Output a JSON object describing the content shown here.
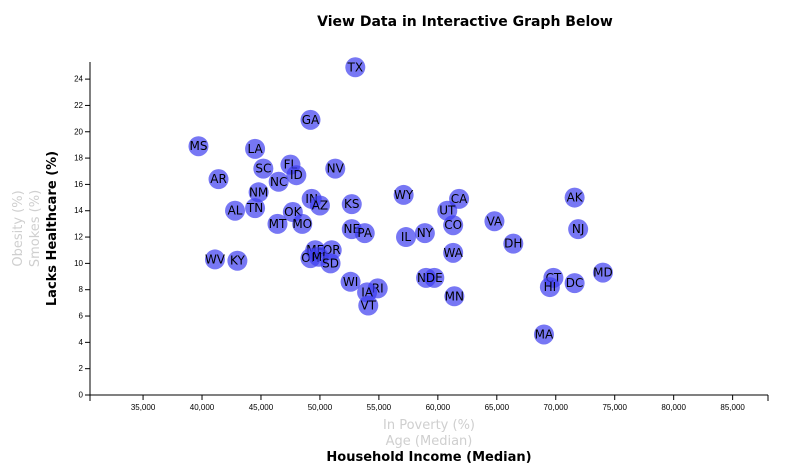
{
  "page": {
    "title": "View Data in Interactive Graph Below"
  },
  "axes": {
    "x_labels": [
      {
        "text": "In Poverty (%)",
        "active": false
      },
      {
        "text": "Age (Median)",
        "active": false
      },
      {
        "text": "Household Income (Median)",
        "active": true
      }
    ],
    "y_labels": [
      {
        "text": "Obesity (%)",
        "active": false
      },
      {
        "text": "Smokes (%)",
        "active": false
      },
      {
        "text": "Lacks Healthcare (%)",
        "active": true
      }
    ]
  },
  "colors": {
    "marker": "#3d3df0",
    "active_label": "#000000",
    "inactive_label": "#cfcfcf"
  },
  "chart_data": {
    "type": "scatter",
    "xlabel": "Household Income (Median)",
    "ylabel": "Lacks Healthcare (%)",
    "xlim": [
      30500,
      88000
    ],
    "ylim": [
      0,
      25.3
    ],
    "x_ticks": [
      35000,
      40000,
      45000,
      50000,
      55000,
      60000,
      65000,
      70000,
      75000,
      80000,
      85000
    ],
    "x_tick_labels": [
      "35,000",
      "40,000",
      "45,000",
      "50,000",
      "55,000",
      "60,000",
      "65,000",
      "70,000",
      "75,000",
      "80,000",
      "85,000"
    ],
    "y_ticks": [
      0,
      2,
      4,
      6,
      8,
      10,
      12,
      14,
      16,
      18,
      20,
      22,
      24
    ],
    "grid": false,
    "points": [
      {
        "label": "TX",
        "x": 53000,
        "y": 24.9
      },
      {
        "label": "GA",
        "x": 49200,
        "y": 20.9
      },
      {
        "label": "MS",
        "x": 39700,
        "y": 18.9
      },
      {
        "label": "LA",
        "x": 44500,
        "y": 18.7
      },
      {
        "label": "FL",
        "x": 47500,
        "y": 17.5
      },
      {
        "label": "SC",
        "x": 45200,
        "y": 17.2
      },
      {
        "label": "NV",
        "x": 51300,
        "y": 17.2
      },
      {
        "label": "ID",
        "x": 48000,
        "y": 16.7
      },
      {
        "label": "NC",
        "x": 46500,
        "y": 16.2
      },
      {
        "label": "AR",
        "x": 41400,
        "y": 16.4
      },
      {
        "label": "NM",
        "x": 44800,
        "y": 15.4
      },
      {
        "label": "WY",
        "x": 57100,
        "y": 15.2
      },
      {
        "label": "CA",
        "x": 61800,
        "y": 14.9
      },
      {
        "label": "AK",
        "x": 71600,
        "y": 15.0
      },
      {
        "label": "IN",
        "x": 49300,
        "y": 14.9
      },
      {
        "label": "AZ",
        "x": 50000,
        "y": 14.4
      },
      {
        "label": "KS",
        "x": 52700,
        "y": 14.5
      },
      {
        "label": "UT",
        "x": 60800,
        "y": 14.0
      },
      {
        "label": "AL",
        "x": 42800,
        "y": 14.0
      },
      {
        "label": "TN",
        "x": 44500,
        "y": 14.2
      },
      {
        "label": "OK",
        "x": 47700,
        "y": 13.9
      },
      {
        "label": "VA",
        "x": 64800,
        "y": 13.2
      },
      {
        "label": "MT",
        "x": 46400,
        "y": 13.0
      },
      {
        "label": "MO",
        "x": 48500,
        "y": 13.0
      },
      {
        "label": "CO",
        "x": 61300,
        "y": 12.9
      },
      {
        "label": "NJ",
        "x": 71900,
        "y": 12.6
      },
      {
        "label": "NE",
        "x": 52700,
        "y": 12.6
      },
      {
        "label": "NY",
        "x": 58900,
        "y": 12.3
      },
      {
        "label": "PA",
        "x": 53800,
        "y": 12.3
      },
      {
        "label": "IL",
        "x": 57300,
        "y": 12.0
      },
      {
        "label": "DH",
        "x": 66400,
        "y": 11.5
      },
      {
        "label": "WA",
        "x": 61300,
        "y": 10.8
      },
      {
        "label": "ME",
        "x": 49600,
        "y": 11.0
      },
      {
        "label": "OR",
        "x": 51000,
        "y": 11.0
      },
      {
        "label": "OH",
        "x": 49200,
        "y": 10.4
      },
      {
        "label": "MI",
        "x": 49900,
        "y": 10.5
      },
      {
        "label": "WV",
        "x": 41100,
        "y": 10.3
      },
      {
        "label": "KY",
        "x": 43000,
        "y": 10.2
      },
      {
        "label": "SD",
        "x": 50900,
        "y": 10.0
      },
      {
        "label": "MD",
        "x": 74000,
        "y": 9.3
      },
      {
        "label": "ND",
        "x": 59000,
        "y": 8.9
      },
      {
        "label": "DE",
        "x": 59700,
        "y": 8.9
      },
      {
        "label": "CT",
        "x": 69800,
        "y": 8.9
      },
      {
        "label": "WI",
        "x": 52600,
        "y": 8.6
      },
      {
        "label": "DC",
        "x": 71600,
        "y": 8.5
      },
      {
        "label": "HI",
        "x": 69500,
        "y": 8.2
      },
      {
        "label": "RI",
        "x": 54900,
        "y": 8.1
      },
      {
        "label": "IA",
        "x": 54000,
        "y": 7.8
      },
      {
        "label": "MN",
        "x": 61400,
        "y": 7.5
      },
      {
        "label": "VT",
        "x": 54100,
        "y": 6.8
      },
      {
        "label": "MA",
        "x": 69000,
        "y": 4.6
      }
    ]
  }
}
